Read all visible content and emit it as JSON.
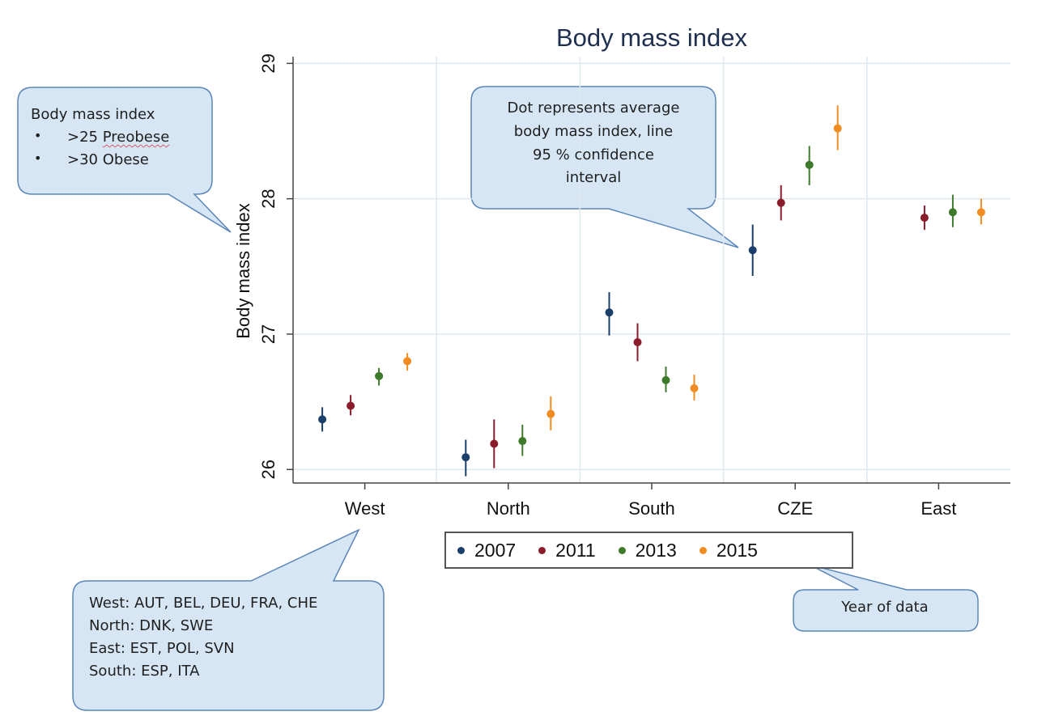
{
  "chart_data": {
    "type": "scatter",
    "title": "Body mass index",
    "xlabel": "",
    "ylabel": "Body mass index",
    "ylim": [
      25.9,
      29.05
    ],
    "yticks": [
      26,
      27,
      28,
      29
    ],
    "categories": [
      "West",
      "North",
      "South",
      "CZE",
      "East"
    ],
    "series": [
      {
        "name": "2007",
        "color": "#1a3f6b",
        "points": [
          {
            "category": "West",
            "value": 26.37,
            "low": 26.28,
            "high": 26.46
          },
          {
            "category": "North",
            "value": 26.09,
            "low": 25.95,
            "high": 26.22
          },
          {
            "category": "South",
            "value": 27.16,
            "low": 26.99,
            "high": 27.31
          },
          {
            "category": "CZE",
            "value": 27.62,
            "low": 27.43,
            "high": 27.81
          }
        ]
      },
      {
        "name": "2011",
        "color": "#8b1c2b",
        "points": [
          {
            "category": "West",
            "value": 26.47,
            "low": 26.4,
            "high": 26.55
          },
          {
            "category": "North",
            "value": 26.19,
            "low": 26.01,
            "high": 26.37
          },
          {
            "category": "South",
            "value": 26.94,
            "low": 26.8,
            "high": 27.08
          },
          {
            "category": "CZE",
            "value": 27.97,
            "low": 27.84,
            "high": 28.1
          },
          {
            "category": "East",
            "value": 27.86,
            "low": 27.77,
            "high": 27.95
          }
        ]
      },
      {
        "name": "2013",
        "color": "#3d7a2b",
        "points": [
          {
            "category": "West",
            "value": 26.69,
            "low": 26.62,
            "high": 26.75
          },
          {
            "category": "North",
            "value": 26.21,
            "low": 26.1,
            "high": 26.33
          },
          {
            "category": "South",
            "value": 26.66,
            "low": 26.57,
            "high": 26.76
          },
          {
            "category": "CZE",
            "value": 28.25,
            "low": 28.1,
            "high": 28.39
          },
          {
            "category": "East",
            "value": 27.9,
            "low": 27.79,
            "high": 28.03
          }
        ]
      },
      {
        "name": "2015",
        "color": "#f08c22",
        "points": [
          {
            "category": "West",
            "value": 26.8,
            "low": 26.73,
            "high": 26.86
          },
          {
            "category": "North",
            "value": 26.41,
            "low": 26.29,
            "high": 26.54
          },
          {
            "category": "South",
            "value": 26.6,
            "low": 26.51,
            "high": 26.7
          },
          {
            "category": "CZE",
            "value": 28.52,
            "low": 28.36,
            "high": 28.69
          },
          {
            "category": "East",
            "value": 27.9,
            "low": 27.81,
            "high": 28.0
          }
        ]
      }
    ],
    "legend": {
      "title": "Year of data",
      "items": [
        "2007",
        "2011",
        "2013",
        "2015"
      ],
      "placement": "bottom"
    },
    "annotations": {
      "bmi_box": {
        "title": "Body mass index",
        "items": [
          {
            "prefix": ">25 ",
            "word": "Preobese"
          },
          {
            "prefix": ">30 ",
            "word": "Obese"
          }
        ]
      },
      "dot_box": [
        "Dot represents average",
        "body mass index, line",
        "95 % confidence",
        "interval"
      ],
      "region_box": [
        "West: AUT, BEL, DEU, FRA, CHE",
        "North: DNK, SWE",
        "East: EST, POL, SVN",
        "South: ESP, ITA"
      ],
      "year_box": "Year of data"
    }
  },
  "colors": {
    "callout_fill": "#d6e6f4",
    "callout_stroke": "#5a86b8",
    "grid": "#dde9ef",
    "axis": "#444444"
  }
}
